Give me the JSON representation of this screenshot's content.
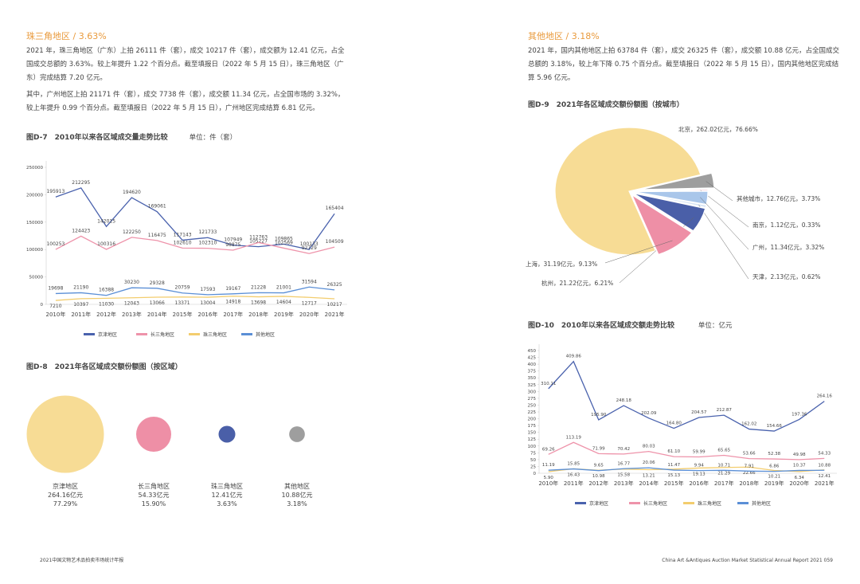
{
  "left": {
    "heading": "珠三角地区 / 3.63%",
    "paragraphs": [
      "2021 年，珠三角地区（广东）上拍 26111 件（套），成交 10217 件（套），成交额为 12.41 亿元，占全国成交总额的 3.63%。较上年提升 1.22 个百分点。截至填报日（2022 年 5 月 15 日），珠三角地区（广东）完成结算 7.20 亿元。",
      "其中，广州地区上拍 21171 件（套），成交 7738 件（套），成交额 11.34 亿元，占全国市场的 3.32%，较上年提升 0.99 个百分点。截至填报日（2022 年 5 月 15 日），广州地区完成结算 6.81 亿元。"
    ]
  },
  "right": {
    "heading": "其他地区 / 3.18%",
    "paragraphs": [
      "2021 年，国内其他地区上拍 63784 件（套），成交 26325 件（套），成交额 10.88 亿元，占全国成交总额的 3.18%，较上年下降 0.75 个百分点。截至填报日（2022 年 5 月 15 日），国内其他地区完成结算 5.96 亿元。"
    ]
  },
  "footer": {
    "left": "2021中国文物艺术品拍卖市场统计年报",
    "right": "China Art &Antiques Auction Market Statistical Annual Report  2021   059"
  },
  "chart_data": [
    {
      "type": "line",
      "title": "图D-7　2010年以来各区域成交量走势比较",
      "unit": "单位：件（套）",
      "categories": [
        "2010年",
        "2011年",
        "2012年",
        "2013年",
        "2014年",
        "2015年",
        "2016年",
        "2017年",
        "2018年",
        "2019年",
        "2020年",
        "2021年"
      ],
      "ylim": [
        0,
        250000
      ],
      "yticks": [
        0,
        50000,
        100000,
        150000,
        200000,
        250000
      ],
      "series": [
        {
          "name": "京津地区",
          "color": "#4a62ad",
          "values": [
            195913,
            212295,
            142015,
            194620,
            169061,
            117143,
            121733,
            107949,
            105227,
            109865,
            100133,
            165404
          ]
        },
        {
          "name": "长三角地区",
          "color": "#ee93aa",
          "values": [
            100253,
            124423,
            100316,
            122250,
            116475,
            102610,
            102310,
            98875,
            112763,
            102569,
            92729,
            104509
          ]
        },
        {
          "name": "珠三角地区",
          "color": "#f3cd6e",
          "values": [
            7210,
            10397,
            11030,
            12043,
            13066,
            13371,
            13004,
            14918,
            13698,
            14604,
            12717,
            10217
          ]
        },
        {
          "name": "其他地区",
          "color": "#5b8fd6",
          "values": [
            19698,
            21190,
            16388,
            30230,
            29328,
            20759,
            17593,
            19167,
            21228,
            21001,
            31594,
            26325
          ]
        }
      ]
    },
    {
      "type": "bubble",
      "title": "图D-8　2021年各区域成交额份额图（按区域）",
      "categories": [
        "京津地区",
        "长三角地区",
        "珠三角地区",
        "其他地区"
      ],
      "values": [
        264.16,
        54.33,
        12.41,
        10.88
      ],
      "value_labels": [
        "264.16亿元",
        "54.33亿元",
        "12.41亿元",
        "10.88亿元"
      ],
      "shares": [
        77.29,
        15.9,
        3.63,
        3.18
      ],
      "share_labels": [
        "77.29%",
        "15.90%",
        "3.63%",
        "3.18%"
      ],
      "colors": [
        "#f7dc95",
        "#ee8fa6",
        "#4a5fa8",
        "#9e9e9e"
      ]
    },
    {
      "type": "pie",
      "title": "图D-9　2021年各区域成交额份额图（按城市）",
      "categories": [
        "北京",
        "其他城市",
        "南京",
        "广州",
        "天津",
        "杭州",
        "上海"
      ],
      "values": [
        76.66,
        3.73,
        0.33,
        3.32,
        0.62,
        6.21,
        9.13
      ],
      "labels": [
        "北京，262.02亿元，76.66%",
        "其他城市，12.76亿元，3.73%",
        "南京，1.12亿元，0.33%",
        "广州，11.34亿元，3.32%",
        "天津，2.13亿元，0.62%",
        "杭州，21.22亿元，6.21%",
        "上海，31.19亿元，9.13%"
      ],
      "colors": [
        "#f7dc95",
        "#9e9e9e",
        "#f5bcc8",
        "#a9c6ea",
        "#d6e4f5",
        "#4a5fa8",
        "#ee8fa6"
      ]
    },
    {
      "type": "line",
      "title": "图D-10　2010年以来各区域成交额走势比较",
      "unit": "单位：亿元",
      "categories": [
        "2010年",
        "2011年",
        "2012年",
        "2013年",
        "2014年",
        "2015年",
        "2016年",
        "2017年",
        "2018年",
        "2019年",
        "2020年",
        "2021年"
      ],
      "ylim": [
        0,
        450
      ],
      "yticks": [
        0,
        25,
        50,
        75,
        100,
        125,
        150,
        175,
        200,
        225,
        250,
        275,
        300,
        325,
        350,
        375,
        400,
        425,
        450
      ],
      "series": [
        {
          "name": "京津地区",
          "color": "#4a62ad",
          "values": [
            310.11,
            409.86,
            195.9,
            248.18,
            202.09,
            164.8,
            204.57,
            212.87,
            162.02,
            154.66,
            197.36,
            264.16
          ],
          "value_labels": [
            "310.11",
            "409.86",
            "195.90",
            "248.18",
            "202.09",
            "164.80",
            "204.57",
            "212.87",
            "162.02",
            "154.66",
            "197.36",
            "264.16"
          ]
        },
        {
          "name": "长三角地区",
          "color": "#ee93aa",
          "values": [
            69.26,
            113.19,
            71.99,
            70.42,
            80.03,
            61.1,
            59.99,
            65.65,
            53.66,
            52.38,
            49.98,
            54.33
          ],
          "value_labels": [
            "69.26",
            "113.19",
            "71.99",
            "70.42",
            "80.03",
            "61.10",
            "59.99",
            "65.65",
            "53.66",
            "52.38",
            "49.98",
            "54.33"
          ]
        },
        {
          "name": "珠三角地区",
          "color": "#f3cd6e",
          "values": [
            5.9,
            16.43,
            10.98,
            15.58,
            13.21,
            15.13,
            19.13,
            21.29,
            22.66,
            10.21,
            6.34,
            12.41
          ],
          "value_labels": [
            "5.90",
            "16.43",
            "10.98",
            "15.58",
            "13.21",
            "15.13",
            "19.13",
            "21.29",
            "22.66",
            "10.21",
            "6.34",
            "12.41"
          ]
        },
        {
          "name": "其他地区",
          "color": "#5b8fd6",
          "values": [
            11.19,
            15.85,
            9.65,
            16.77,
            20.06,
            11.47,
            9.94,
            10.71,
            7.91,
            6.86,
            10.37,
            10.88
          ],
          "value_labels": [
            "11.19",
            "15.85",
            "9.65",
            "16.77",
            "20.06",
            "11.47",
            "9.94",
            "10.71",
            "7.91",
            "6.86",
            "10.37",
            "10.88"
          ]
        }
      ]
    }
  ]
}
